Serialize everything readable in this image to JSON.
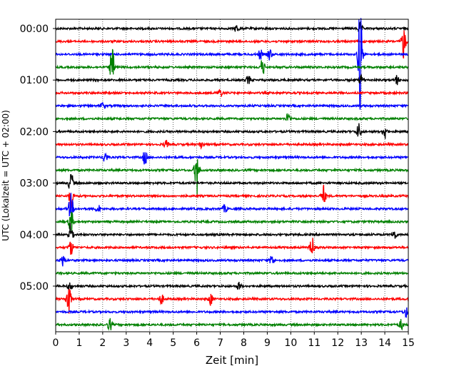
{
  "chart_data": {
    "type": "line",
    "title": "",
    "xlabel": "Zeit  [min]",
    "ylabel": "UTC (Lokalzeit = UTC + 02:00)",
    "xlim": [
      0,
      15
    ],
    "x_ticks": [
      0,
      1,
      2,
      3,
      4,
      5,
      6,
      7,
      8,
      9,
      10,
      11,
      12,
      13,
      14,
      15
    ],
    "y_tick_labels": [
      "00:00",
      "01:00",
      "02:00",
      "03:00",
      "04:00",
      "05:00"
    ],
    "grid": "vertical-dotted",
    "legend": "none",
    "trace_colors": [
      "#000000",
      "#ff0000",
      "#0000ff",
      "#008000"
    ],
    "traces": [
      {
        "start": "00:00",
        "events": [
          {
            "t": 7.7,
            "amp": 0.35
          },
          {
            "t": 12.95,
            "amp": 0.5
          }
        ]
      },
      {
        "start": "00:15",
        "events": [
          {
            "t": 14.8,
            "amp": 1.4
          }
        ]
      },
      {
        "start": "00:30",
        "events": [
          {
            "t": 8.7,
            "amp": 0.4
          },
          {
            "t": 9.1,
            "amp": 0.45
          },
          {
            "t": 12.95,
            "amp": 4.5
          }
        ]
      },
      {
        "start": "00:45",
        "events": [
          {
            "t": 2.4,
            "amp": 1.6
          },
          {
            "t": 8.8,
            "amp": 0.7
          }
        ]
      },
      {
        "start": "01:00",
        "events": [
          {
            "t": 8.2,
            "amp": 0.35
          },
          {
            "t": 13.0,
            "amp": 0.4
          },
          {
            "t": 14.5,
            "amp": 0.4
          }
        ]
      },
      {
        "start": "01:15",
        "events": [
          {
            "t": 7.0,
            "amp": 0.35
          }
        ]
      },
      {
        "start": "01:30",
        "events": [
          {
            "t": 2.0,
            "amp": 0.25
          }
        ]
      },
      {
        "start": "01:45",
        "events": [
          {
            "t": 9.9,
            "amp": 0.5
          }
        ]
      },
      {
        "start": "02:00",
        "events": [
          {
            "t": 12.9,
            "amp": 0.7
          },
          {
            "t": 14.0,
            "amp": 0.6
          }
        ]
      },
      {
        "start": "02:15",
        "events": [
          {
            "t": 4.7,
            "amp": 0.3
          },
          {
            "t": 6.2,
            "amp": 0.3
          }
        ]
      },
      {
        "start": "02:30",
        "events": [
          {
            "t": 2.1,
            "amp": 0.5
          },
          {
            "t": 3.8,
            "amp": 0.6
          }
        ]
      },
      {
        "start": "02:45",
        "events": [
          {
            "t": 6.0,
            "amp": 2.0
          }
        ]
      },
      {
        "start": "03:00",
        "events": [
          {
            "t": 0.65,
            "amp": 1.0
          }
        ]
      },
      {
        "start": "03:15",
        "events": [
          {
            "t": 0.65,
            "amp": 1.0
          },
          {
            "t": 11.4,
            "amp": 0.8
          }
        ]
      },
      {
        "start": "03:30",
        "events": [
          {
            "t": 0.65,
            "amp": 1.2
          },
          {
            "t": 1.8,
            "amp": 0.35
          },
          {
            "t": 7.2,
            "amp": 0.3
          }
        ]
      },
      {
        "start": "03:45",
        "events": [
          {
            "t": 0.65,
            "amp": 1.0
          }
        ]
      },
      {
        "start": "04:00",
        "events": [
          {
            "t": 0.65,
            "amp": 1.0
          },
          {
            "t": 14.4,
            "amp": 0.4
          }
        ]
      },
      {
        "start": "04:15",
        "events": [
          {
            "t": 0.65,
            "amp": 0.6
          },
          {
            "t": 10.9,
            "amp": 0.9
          }
        ]
      },
      {
        "start": "04:30",
        "events": [
          {
            "t": 0.3,
            "amp": 0.5
          },
          {
            "t": 9.2,
            "amp": 0.45
          }
        ]
      },
      {
        "start": "04:45",
        "events": []
      },
      {
        "start": "05:00",
        "events": [
          {
            "t": 0.6,
            "amp": 0.35
          },
          {
            "t": 7.8,
            "amp": 0.3
          }
        ]
      },
      {
        "start": "05:15",
        "events": [
          {
            "t": 0.55,
            "amp": 1.6
          },
          {
            "t": 4.5,
            "amp": 0.4
          },
          {
            "t": 6.6,
            "amp": 0.5
          }
        ]
      },
      {
        "start": "05:30",
        "events": [
          {
            "t": 14.9,
            "amp": 0.4
          }
        ]
      },
      {
        "start": "05:45",
        "events": [
          {
            "t": 2.3,
            "amp": 0.5
          },
          {
            "t": 14.7,
            "amp": 0.4
          }
        ]
      }
    ]
  }
}
